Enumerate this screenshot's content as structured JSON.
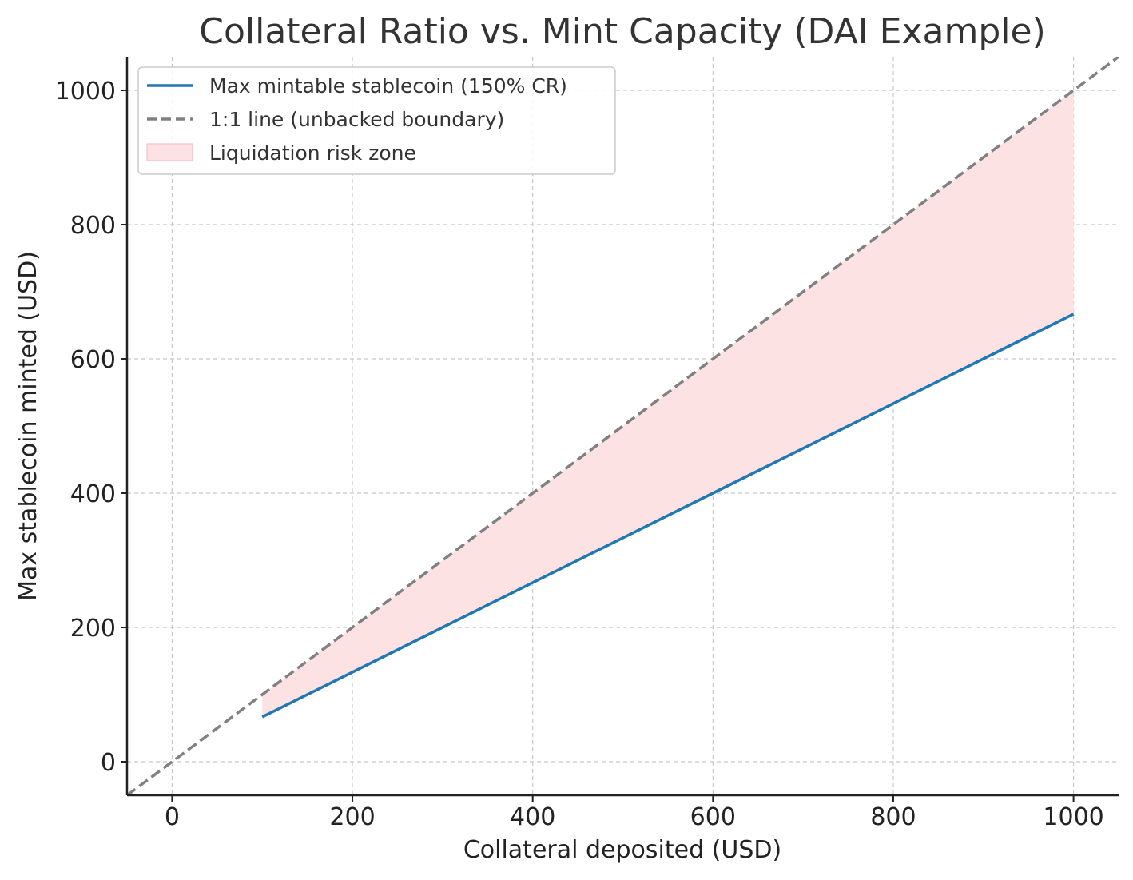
{
  "chart_data": {
    "type": "line",
    "title": "Collateral Ratio vs. Mint Capacity (DAI Example)",
    "xlabel": "Collateral deposited (USD)",
    "ylabel": "Max stablecoin minted (USD)",
    "xlim": [
      -50,
      1050
    ],
    "ylim": [
      -50,
      1050
    ],
    "xticks": [
      0,
      200,
      400,
      600,
      800,
      1000
    ],
    "yticks": [
      0,
      200,
      400,
      600,
      800,
      1000
    ],
    "xtick_labels": [
      "0",
      "200",
      "400",
      "600",
      "800",
      "1000"
    ],
    "ytick_labels": [
      "0",
      "200",
      "400",
      "600",
      "800",
      "1000"
    ],
    "grid": true,
    "collateral_ratio_percent": 150,
    "series": [
      {
        "name": "Max mintable stablecoin (150% CR)",
        "style": "solid",
        "color": "#1f77b4",
        "x": [
          100,
          1000
        ],
        "y": [
          66.7,
          666.7
        ]
      },
      {
        "name": "1:1 line (unbacked boundary)",
        "style": "dashed",
        "color": "#808080",
        "x": [
          -50,
          1050
        ],
        "y": [
          -50,
          1050
        ]
      }
    ],
    "fill": {
      "name": "Liquidation risk zone",
      "color": "#fde2e4",
      "x": [
        100,
        1000
      ],
      "y_lower": [
        66.7,
        666.7
      ],
      "y_upper": [
        100,
        1000
      ]
    },
    "legend": {
      "position": "top-left",
      "entries": [
        "Max mintable stablecoin (150% CR)",
        "1:1 line (unbacked boundary)",
        "Liquidation risk zone"
      ]
    }
  }
}
